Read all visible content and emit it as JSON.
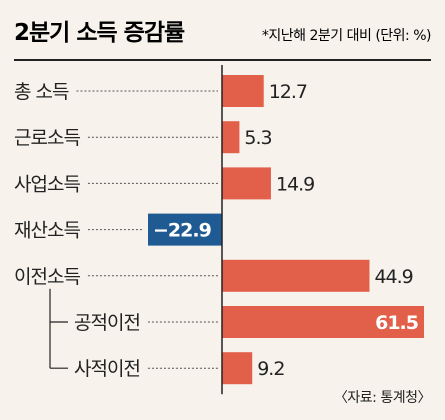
{
  "chart_data": {
    "type": "bar",
    "orientation": "horizontal",
    "title": "2분기 소득 증감률",
    "subtitle": "*지난해 2분기 대비 (단위: %)",
    "source": "〈자료: 통계청〉",
    "categories": [
      "총 소득",
      "근로소득",
      "사업소득",
      "재산소득",
      "이전소득",
      "공적이전",
      "사적이전"
    ],
    "values": [
      12.7,
      5.3,
      14.9,
      -22.9,
      44.9,
      61.5,
      9.2
    ],
    "value_labels": [
      "12.7",
      "5.3",
      "14.9",
      "−22.9",
      "44.9",
      "61.5",
      "9.2"
    ],
    "sub_items": [
      "공적이전",
      "사적이전"
    ],
    "parent_of_sub_items": "이전소득",
    "xlim": [
      -22.9,
      61.5
    ],
    "colors": {
      "positive": "#e2604a",
      "negative": "#1f5a92",
      "background": "#f7f3ec",
      "axis": "#222222"
    }
  }
}
